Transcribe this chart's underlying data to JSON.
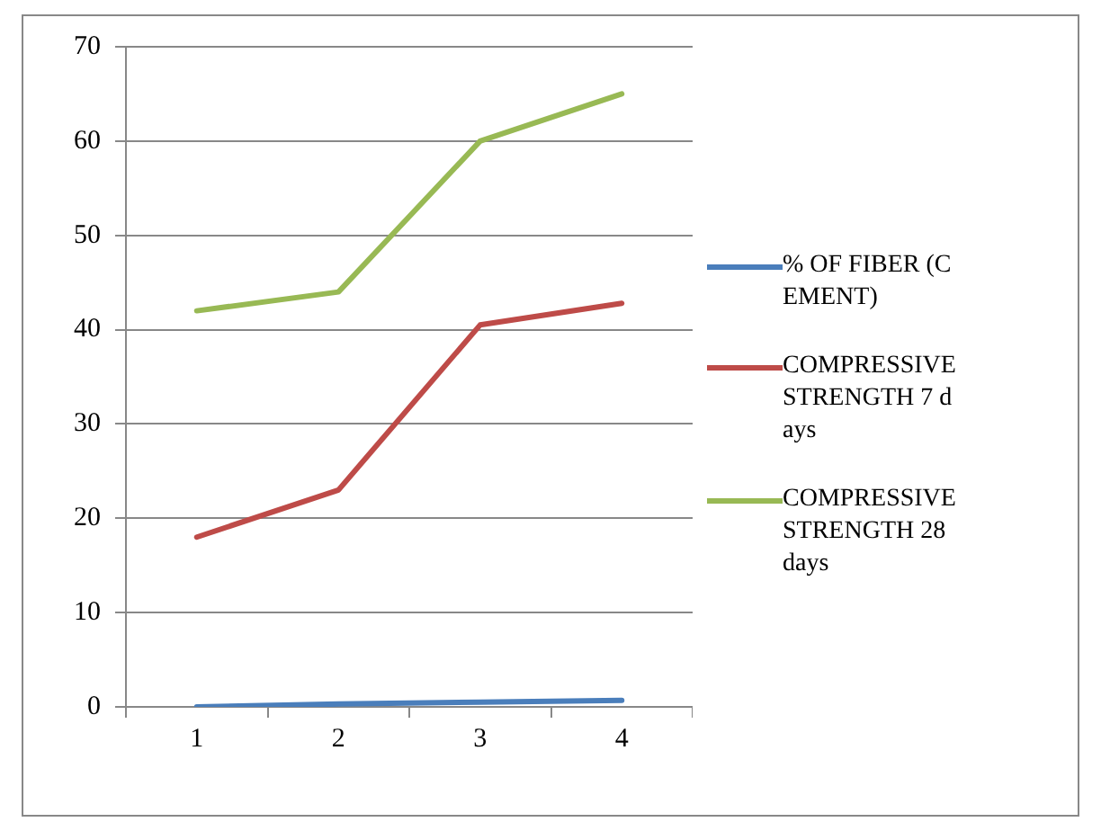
{
  "chart_data": {
    "type": "line",
    "categories": [
      "1",
      "2",
      "3",
      "4"
    ],
    "series": [
      {
        "name": "% OF FIBER (CEMENT)",
        "color": "#4a7ebb",
        "values": [
          0,
          0.3,
          0.5,
          0.7
        ]
      },
      {
        "name": "COMPRESSIVE STRENGTH 7 days",
        "color": "#be4b48",
        "values": [
          18,
          23,
          40.5,
          42.8
        ]
      },
      {
        "name": "COMPRESSIVE STRENGTH 28 days",
        "color": "#98b954",
        "values": [
          42,
          44,
          60,
          65
        ]
      }
    ],
    "ylim": [
      0,
      70
    ],
    "yticks": [
      0,
      10,
      20,
      30,
      40,
      50,
      60,
      70
    ],
    "grid": "y",
    "legend": "right",
    "marker": "none",
    "line_style": "solid"
  }
}
